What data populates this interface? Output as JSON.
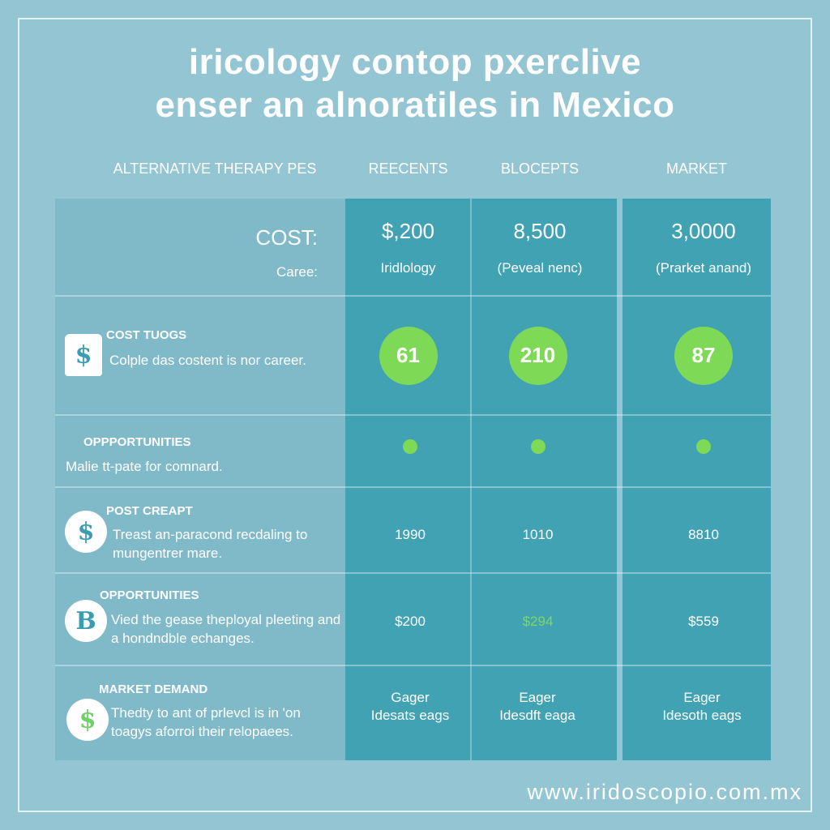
{
  "title": {
    "line1": "iricology contop pxerclive",
    "line2": "enser an alnoratiles in Mexico"
  },
  "columns": {
    "label": "ALTERNATIVE THERAPY PES",
    "c1": "REECENTS",
    "c2": "BLOCEPTS",
    "c3": "MARKET"
  },
  "header_row": {
    "cost_label": "COST:",
    "career_label": "Caree:",
    "c1_cost": "$,200",
    "c2_cost": "8,500",
    "c3_cost": "3,0000",
    "c1_sub": "Iridlology",
    "c2_sub": "(Peveal nenc)",
    "c3_sub": "(Prarket anand)"
  },
  "rows": [
    {
      "title": "COST TUOGS",
      "desc": "Colple das costent is nor career.",
      "icon": "dollar-bag-icon",
      "values": [
        "61",
        "210",
        "87"
      ]
    },
    {
      "title": "OPPPORTUNITIES",
      "desc": "Malie tt-pate for comnard.",
      "values": [
        "",
        "",
        ""
      ]
    },
    {
      "title": "POST CREAPT",
      "desc": "Treast an-paracond recdaling to mungentrer mare.",
      "icon": "dollar-icon",
      "values": [
        "1990",
        "1010",
        "8810"
      ]
    },
    {
      "title": "OPPORTUNITIES",
      "desc": "Vied the gease theployal pleeting and a hondndble echanges.",
      "icon": "bitcoin-icon",
      "values": [
        "$200",
        "$294",
        "$559"
      ]
    },
    {
      "title": "MARKET DEMAND",
      "desc": "Thedty to ant of prlevcl is in 'on toagys aforroi their relopaees.",
      "icon": "dollar-icon",
      "values": [
        "Gager Idesats eags",
        "Eager Idesdft eaga",
        "Eager Idesoth eags"
      ]
    }
  ],
  "colors": {
    "background": "#93c5d3",
    "column": "#41a2b4",
    "accent_green": "#7ed957",
    "icon_teal": "#3a9db0"
  },
  "footer": {
    "url": "www.iridoscopio.com.mx"
  }
}
